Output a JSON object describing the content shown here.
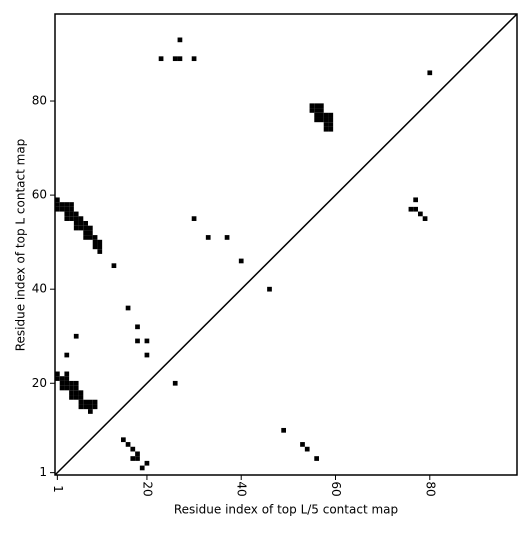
{
  "chart_data": {
    "type": "scatter",
    "xlabel": "Residue index of top L/5 contact map",
    "ylabel": "Residue index of top L contact map",
    "x": [
      23,
      26,
      27,
      27,
      30,
      80,
      30,
      33,
      37,
      40,
      46,
      13,
      16,
      18,
      18,
      20,
      20,
      5,
      3,
      26,
      1,
      1,
      2,
      3,
      4,
      1,
      2,
      3,
      4,
      3,
      4,
      5,
      3,
      4,
      5,
      6,
      5,
      6,
      7,
      5,
      6,
      7,
      8,
      7,
      8,
      7,
      8,
      9,
      9,
      10,
      9,
      10,
      10,
      55,
      56,
      57,
      55,
      56,
      57,
      56,
      57,
      58,
      59,
      56,
      57,
      58,
      59,
      58,
      59,
      58,
      59,
      77,
      76,
      77,
      78,
      79,
      1,
      3,
      1,
      2,
      3,
      2,
      3,
      4,
      5,
      2,
      3,
      4,
      5,
      4,
      5,
      6,
      4,
      5,
      6,
      6,
      7,
      8,
      9,
      6,
      7,
      8,
      9,
      8,
      15,
      16,
      17,
      18,
      17,
      18,
      20,
      19,
      49,
      53,
      54,
      56
    ],
    "values": [
      89,
      89,
      89,
      93,
      89,
      86,
      55,
      51,
      51,
      46,
      40,
      45,
      36,
      32,
      29,
      29,
      26,
      30,
      26,
      20,
      59,
      58,
      58,
      58,
      58,
      57,
      57,
      57,
      57,
      56,
      56,
      56,
      55,
      55,
      55,
      55,
      54,
      54,
      54,
      53,
      53,
      53,
      53,
      52,
      52,
      51,
      51,
      51,
      50,
      50,
      49,
      49,
      48,
      79,
      79,
      79,
      78,
      78,
      78,
      77,
      77,
      77,
      77,
      76,
      76,
      76,
      76,
      75,
      75,
      74,
      74,
      59,
      57,
      57,
      56,
      55,
      22,
      22,
      21,
      21,
      21,
      20,
      20,
      20,
      20,
      19,
      19,
      19,
      19,
      18,
      18,
      18,
      17,
      17,
      17,
      16,
      16,
      16,
      16,
      15,
      15,
      15,
      15,
      14,
      8,
      7,
      6,
      5,
      4,
      4,
      3,
      2,
      10,
      7,
      6,
      4
    ],
    "color": "#000000",
    "xlim": [
      0.5,
      98.5
    ],
    "ylim": [
      0.5,
      98.5
    ],
    "xticks": [
      1,
      20,
      40,
      60,
      80
    ],
    "yticks": [
      1,
      20,
      40,
      60,
      80
    ],
    "grid": false
  }
}
